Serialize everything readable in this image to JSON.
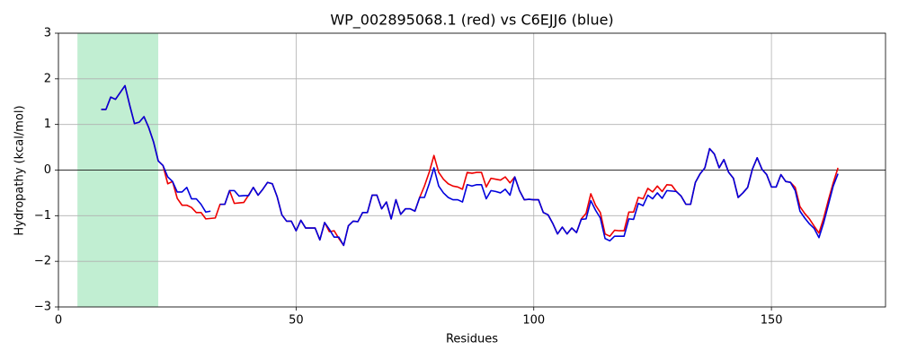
{
  "chart_data": {
    "type": "line",
    "title": "WP_002895068.1 (red) vs C6EJJ6 (blue)",
    "xlabel": "Residues",
    "ylabel": "Hydropathy (kcal/mol)",
    "xlim": [
      0,
      174
    ],
    "ylim": [
      -3,
      3
    ],
    "xticks": [
      0,
      50,
      100,
      150
    ],
    "yticks": [
      {
        "value": -3,
        "label": "−3"
      },
      {
        "value": -2,
        "label": "−2"
      },
      {
        "value": -1,
        "label": "−1"
      },
      0,
      1,
      2,
      3
    ],
    "grid": true,
    "hline": 0,
    "span": {
      "x": [
        4,
        21
      ],
      "color": "#c1eed2"
    },
    "x": [
      9,
      10,
      11,
      12,
      13,
      14,
      15,
      16,
      17,
      18,
      19,
      20,
      21,
      22,
      23,
      24,
      25,
      26,
      27,
      28,
      29,
      30,
      31,
      32,
      33,
      34,
      35,
      36,
      37,
      38,
      39,
      40,
      41,
      42,
      43,
      44,
      45,
      46,
      47,
      48,
      49,
      50,
      51,
      52,
      53,
      54,
      55,
      56,
      57,
      58,
      59,
      60,
      61,
      62,
      63,
      64,
      65,
      66,
      67,
      68,
      69,
      70,
      71,
      72,
      73,
      74,
      75,
      76,
      77,
      78,
      79,
      80,
      81,
      82,
      83,
      84,
      85,
      86,
      87,
      88,
      89,
      90,
      91,
      92,
      93,
      94,
      95,
      96,
      97,
      98,
      99,
      100,
      101,
      102,
      103,
      104,
      105,
      106,
      107,
      108,
      109,
      110,
      111,
      112,
      113,
      114,
      115,
      116,
      117,
      118,
      119,
      120,
      121,
      122,
      123,
      124,
      125,
      126,
      127,
      128,
      129,
      130,
      131,
      132,
      133,
      134,
      135,
      136,
      137,
      138,
      139,
      140,
      141,
      142,
      143,
      144,
      145,
      146,
      147,
      148,
      149,
      150,
      151,
      152,
      153,
      154,
      155,
      156,
      157,
      158,
      159,
      160,
      161,
      162,
      163,
      164
    ],
    "series": [
      {
        "name": "WP_002895068.1",
        "color": "#ee0000",
        "values": [
          1.33,
          1.33,
          1.6,
          1.55,
          1.7,
          1.85,
          1.42,
          1.02,
          1.05,
          1.17,
          0.93,
          0.62,
          0.2,
          0.1,
          -0.3,
          -0.25,
          -0.62,
          -0.77,
          -0.77,
          -0.82,
          -0.93,
          -0.93,
          -1.07,
          -1.06,
          -1.05,
          -0.75,
          -0.75,
          -0.45,
          -0.73,
          -0.72,
          -0.71,
          -0.55,
          -0.38,
          -0.55,
          -0.42,
          -0.27,
          -0.3,
          -0.58,
          -0.98,
          -1.12,
          -1.12,
          -1.33,
          -1.1,
          -1.27,
          -1.27,
          -1.27,
          -1.53,
          -1.15,
          -1.35,
          -1.33,
          -1.5,
          -1.65,
          -1.22,
          -1.12,
          -1.13,
          -0.93,
          -0.93,
          -0.55,
          -0.55,
          -0.85,
          -0.7,
          -1.07,
          -0.65,
          -0.97,
          -0.85,
          -0.85,
          -0.9,
          -0.6,
          -0.35,
          -0.05,
          0.32,
          -0.05,
          -0.2,
          -0.3,
          -0.35,
          -0.37,
          -0.42,
          -0.05,
          -0.07,
          -0.05,
          -0.05,
          -0.37,
          -0.18,
          -0.2,
          -0.22,
          -0.15,
          -0.28,
          -0.15,
          -0.45,
          -0.65,
          -0.64,
          -0.65,
          -0.65,
          -0.93,
          -0.98,
          -1.17,
          -1.4,
          -1.25,
          -1.4,
          -1.27,
          -1.37,
          -1.07,
          -0.95,
          -0.52,
          -0.77,
          -0.93,
          -1.4,
          -1.45,
          -1.32,
          -1.33,
          -1.33,
          -0.92,
          -0.92,
          -0.6,
          -0.63,
          -0.4,
          -0.48,
          -0.35,
          -0.47,
          -0.32,
          -0.33,
          -0.47,
          -0.57,
          -0.75,
          -0.75,
          -0.27,
          -0.08,
          0.05,
          0.47,
          0.35,
          0.05,
          0.23,
          -0.05,
          -0.18,
          -0.6,
          -0.5,
          -0.38,
          0.02,
          0.27,
          0.02,
          -0.1,
          -0.37,
          -0.37,
          -0.1,
          -0.25,
          -0.27,
          -0.38,
          -0.8,
          -0.95,
          -1.07,
          -1.23,
          -1.38,
          -1.05,
          -0.65,
          -0.28,
          0.05
        ]
      },
      {
        "name": "C6EJJ6",
        "color": "#0000dd",
        "values": [
          1.33,
          1.33,
          1.6,
          1.55,
          1.7,
          1.85,
          1.42,
          1.02,
          1.05,
          1.17,
          0.93,
          0.62,
          0.2,
          0.1,
          -0.15,
          -0.25,
          -0.48,
          -0.48,
          -0.38,
          -0.63,
          -0.63,
          -0.75,
          -0.92,
          -0.9,
          null,
          -0.75,
          -0.75,
          -0.45,
          -0.45,
          -0.57,
          -0.56,
          -0.56,
          -0.38,
          -0.55,
          -0.42,
          -0.27,
          -0.3,
          -0.58,
          -0.98,
          -1.12,
          -1.12,
          -1.33,
          -1.1,
          -1.27,
          -1.27,
          -1.27,
          -1.53,
          -1.15,
          -1.3,
          -1.47,
          -1.47,
          -1.65,
          -1.22,
          -1.12,
          -1.13,
          -0.93,
          -0.93,
          -0.55,
          -0.55,
          -0.85,
          -0.7,
          -1.07,
          -0.65,
          -0.97,
          -0.85,
          -0.85,
          -0.9,
          -0.6,
          -0.6,
          -0.3,
          0.05,
          -0.35,
          -0.5,
          -0.6,
          -0.65,
          -0.65,
          -0.7,
          -0.32,
          -0.35,
          -0.32,
          -0.32,
          -0.63,
          -0.45,
          -0.47,
          -0.5,
          -0.42,
          -0.55,
          -0.15,
          -0.45,
          -0.65,
          -0.64,
          -0.65,
          -0.65,
          -0.93,
          -0.98,
          -1.17,
          -1.4,
          -1.25,
          -1.4,
          -1.27,
          -1.37,
          -1.08,
          -1.07,
          -0.67,
          -0.88,
          -1.05,
          -1.5,
          -1.55,
          -1.45,
          -1.45,
          -1.45,
          -1.07,
          -1.08,
          -0.73,
          -0.78,
          -0.55,
          -0.63,
          -0.5,
          -0.62,
          -0.45,
          -0.46,
          -0.47,
          -0.57,
          -0.75,
          -0.75,
          -0.27,
          -0.08,
          0.05,
          0.47,
          0.35,
          0.05,
          0.23,
          -0.05,
          -0.18,
          -0.6,
          -0.5,
          -0.38,
          0.02,
          0.27,
          0.02,
          -0.1,
          -0.37,
          -0.37,
          -0.1,
          -0.25,
          -0.27,
          -0.45,
          -0.9,
          -1.05,
          -1.18,
          -1.28,
          -1.48,
          -1.15,
          -0.75,
          -0.35,
          -0.08
        ]
      }
    ]
  }
}
